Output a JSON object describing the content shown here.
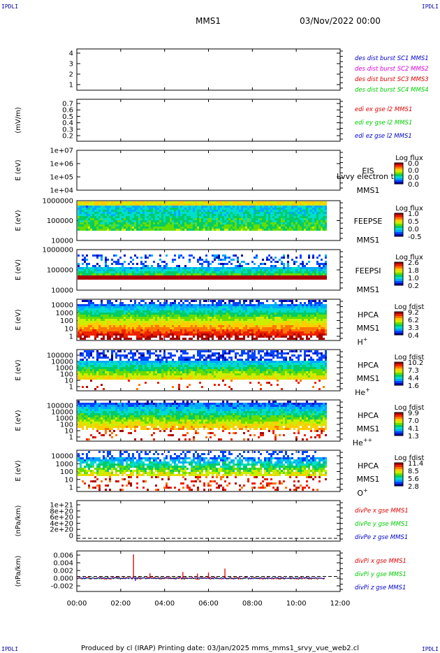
{
  "corners": {
    "top_left": "IPDLI",
    "top_right": "IPDLI",
    "bottom_left": "IPDLI",
    "bottom_right": "IPDLI"
  },
  "header": {
    "mission": "MMS1",
    "date": "03/Nov/2022 00:00"
  },
  "footer": "Produced by cl (IRAP)   Printing date: 03/Jan/2025   mms_mms1_srvy_vue_web2.cl",
  "colors": {
    "blue": "#0000cc",
    "magenta": "#dd00dd",
    "red": "#dd0000",
    "green": "#00cc00",
    "spectrogram_scale": [
      "#0000aa",
      "#0044ff",
      "#00aaff",
      "#00ddcc",
      "#00cc66",
      "#66dd00",
      "#ccee00",
      "#ffcc00",
      "#ff7700",
      "#ee2200",
      "#aa0000"
    ]
  },
  "chart_data": [
    {
      "type": "line",
      "ylabel": "",
      "yticks": [
        "4",
        "3",
        "2",
        "1"
      ],
      "ylim": [
        1,
        4
      ],
      "legend": [
        {
          "text": "des dist burst SC1 MMS1",
          "color": "#0000cc"
        },
        {
          "text": "des dist burst SC2 MMS2",
          "color": "#dd00dd"
        },
        {
          "text": "des dist burst SC3 MMS3",
          "color": "#dd0000"
        },
        {
          "text": "des dist burst SC4 MMS4",
          "color": "#00cc00"
        }
      ]
    },
    {
      "type": "line",
      "ylabel": "(mV/m)",
      "yticks": [
        "0.7",
        "0.6",
        "0.5",
        "0.4",
        "0.3",
        "0.2"
      ],
      "ylim": [
        0.15,
        0.7
      ],
      "legend": [
        {
          "text": "edi ex gse l2 MMS1",
          "color": "#dd0000"
        },
        {
          "text": "edi ey gse l2 MMS1",
          "color": "#00cc00"
        },
        {
          "text": "edi ez gse l2 MMS1",
          "color": "#0000cc"
        }
      ]
    },
    {
      "type": "heatmap",
      "ylabel": "E (eV)",
      "yticks": [
        "1e+07",
        "1e+06",
        "1e+05",
        "1e+04"
      ],
      "ylim": [
        10000,
        10000000
      ],
      "scale": "log",
      "instrument": [
        "EIS",
        "MMS1"
      ],
      "overlay_text": "Lvvy electron to",
      "colorbar": {
        "title": "Log flux",
        "ticks": [
          "0.0",
          "0.0",
          "0.0",
          "0.0"
        ]
      }
    },
    {
      "type": "heatmap",
      "ylabel": "E (eV)",
      "yticks": [
        "1000000",
        "100000",
        "10000"
      ],
      "ylim": [
        10000,
        1000000
      ],
      "scale": "log",
      "instrument": [
        "FEEPSE",
        "MMS1"
      ],
      "colorbar": {
        "title": "Log flux",
        "ticks": [
          "1.0",
          "0.5",
          "0.0",
          "-0.5"
        ]
      }
    },
    {
      "type": "heatmap",
      "ylabel": "E (eV)",
      "yticks": [
        "1000000",
        "100000",
        "10000"
      ],
      "ylim": [
        10000,
        1000000
      ],
      "scale": "log",
      "instrument": [
        "FEEPSI",
        "MMS1"
      ],
      "colorbar": {
        "title": "Log flux",
        "ticks": [
          "2.6",
          "1.8",
          "1.0",
          "0.2"
        ]
      }
    },
    {
      "type": "heatmap",
      "ylabel": "E (eV)",
      "yticks": [
        "10000",
        "1000",
        "100",
        "10",
        "1"
      ],
      "ylim": [
        1,
        40000
      ],
      "scale": "log",
      "instrument": [
        "HPCA",
        "MMS1"
      ],
      "species": "H",
      "species_sup": "+",
      "colorbar": {
        "title": "Log fdist",
        "ticks": [
          "9.2",
          "6.2",
          "3.3",
          "0.4"
        ]
      }
    },
    {
      "type": "heatmap",
      "ylabel": "E (eV)",
      "yticks": [
        "100000",
        "10000",
        "1000",
        "100",
        "10",
        "1"
      ],
      "ylim": [
        1,
        100000
      ],
      "scale": "log",
      "instrument": [
        "HPCA",
        "MMS1"
      ],
      "species": "He",
      "species_sup": "+",
      "colorbar": {
        "title": "Log fdist",
        "ticks": [
          "10.2",
          "7.3",
          "4.4",
          "1.6"
        ]
      }
    },
    {
      "type": "heatmap",
      "ylabel": "E (eV)",
      "yticks": [
        "100000",
        "10000",
        "1000",
        "100",
        "10",
        "1"
      ],
      "ylim": [
        1,
        100000
      ],
      "scale": "log",
      "instrument": [
        "HPCA",
        "MMS1"
      ],
      "species": "He",
      "species_sup": "++",
      "colorbar": {
        "title": "Log fdist",
        "ticks": [
          "9.9",
          "7.0",
          "4.1",
          "1.3"
        ]
      }
    },
    {
      "type": "heatmap",
      "ylabel": "E (eV)",
      "yticks": [
        "10000",
        "1000",
        "100",
        "10",
        "1"
      ],
      "ylim": [
        1,
        40000
      ],
      "scale": "log",
      "instrument": [
        "HPCA",
        "MMS1"
      ],
      "species": "O",
      "species_sup": "+",
      "colorbar": {
        "title": "Log fdist",
        "ticks": [
          "11.4",
          "8.5",
          "5.6",
          "2.8"
        ]
      }
    },
    {
      "type": "line",
      "ylabel": "(nPa/km)",
      "yticks": [
        "1e+21",
        "8e+20",
        "6e+20",
        "4e+20",
        "2e+20",
        "0"
      ],
      "ylim": [
        0,
        1.05e+21
      ],
      "zero_line": true,
      "legend": [
        {
          "text": "divPe x gse MMS1",
          "color": "#dd0000"
        },
        {
          "text": "divPe y gse MMS1",
          "color": "#00cc00"
        },
        {
          "text": "divPe z gse MMS1",
          "color": "#0000cc"
        }
      ]
    },
    {
      "type": "line",
      "ylabel": "(nPa/km)",
      "yticks": [
        "0.006",
        "0.004",
        "0.002",
        "0.000",
        "-0.002"
      ],
      "ylim": [
        -0.003,
        0.0068
      ],
      "zero_line": true,
      "legend": [
        {
          "text": "divPi x gse MMS1",
          "color": "#dd0000"
        },
        {
          "text": "divPi y gse MMS1",
          "color": "#00cc00"
        },
        {
          "text": "divPi z gse MMS1",
          "color": "#0000cc"
        }
      ],
      "spikes_x": [
        {
          "t": "02:35",
          "value": 0.0062
        },
        {
          "t": "03:20",
          "value": 0.0013
        },
        {
          "t": "04:50",
          "value": 0.0016
        },
        {
          "t": "05:30",
          "value": 0.0012
        },
        {
          "t": "06:00",
          "value": 0.0015
        },
        {
          "t": "06:45",
          "value": 0.0025
        }
      ],
      "z_dip": {
        "t": "02:40",
        "value": -0.0007
      }
    }
  ],
  "time_axis": {
    "start": "00:00",
    "end": "12:00",
    "ticks": [
      "00:00",
      "02:00",
      "04:00",
      "06:00",
      "08:00",
      "10:00",
      "12:00"
    ],
    "data_end": "11:20"
  }
}
